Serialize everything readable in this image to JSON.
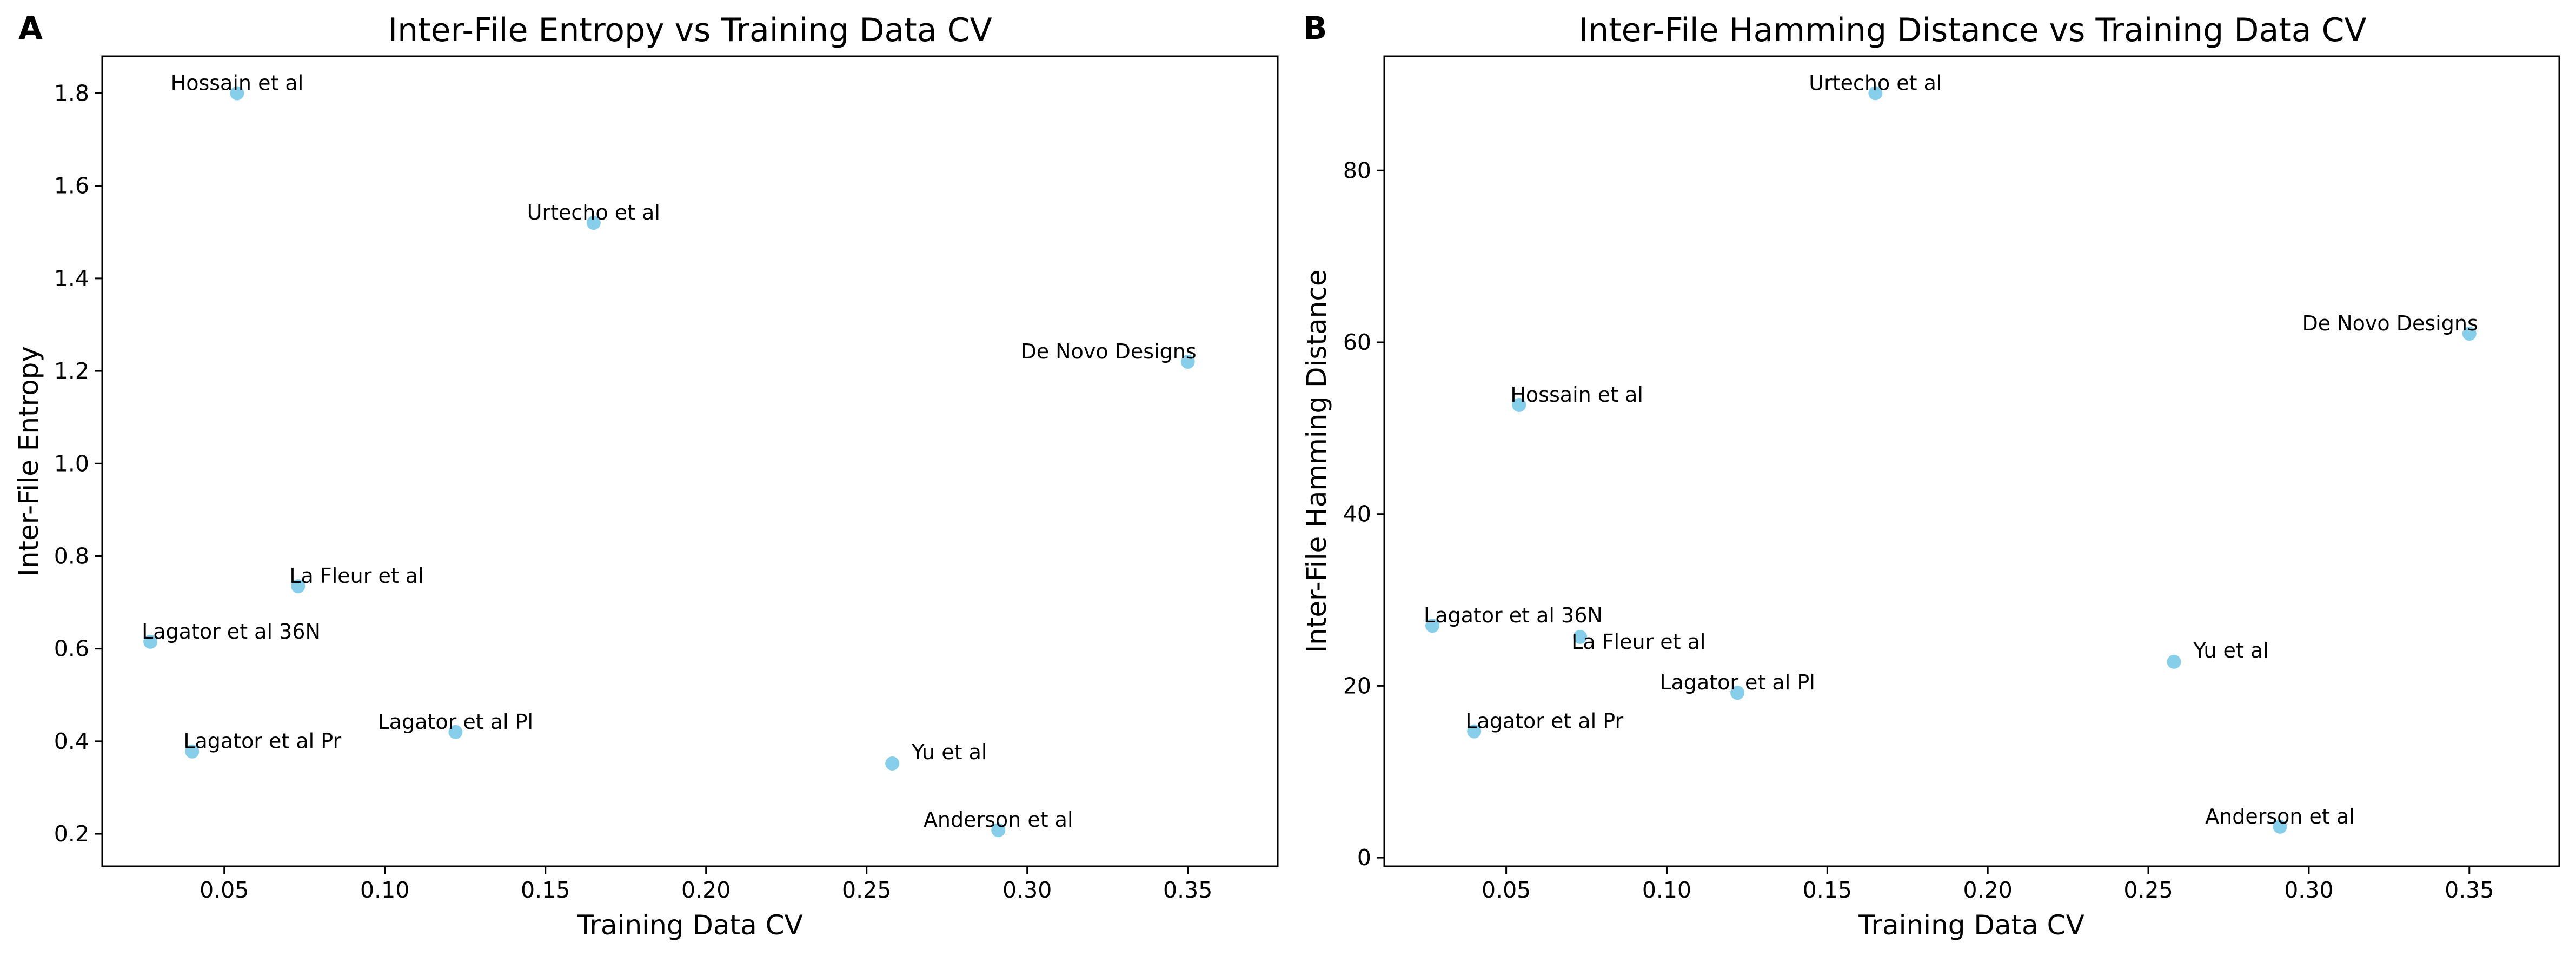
{
  "chart_data": [
    {
      "type": "scatter",
      "panel_label": "A",
      "title": "Inter-File Entropy vs Training Data CV",
      "xlabel": "Training Data CV",
      "ylabel": "Inter-File Entropy",
      "xlim": [
        0.012,
        0.378
      ],
      "ylim": [
        0.13,
        1.88
      ],
      "x_ticks": [
        0.05,
        0.1,
        0.15,
        0.2,
        0.25,
        0.3,
        0.35
      ],
      "x_tick_labels": [
        "0.05",
        "0.10",
        "0.15",
        "0.20",
        "0.25",
        "0.30",
        "0.35"
      ],
      "y_ticks": [
        0.2,
        0.4,
        0.6,
        0.8,
        1.0,
        1.2,
        1.4,
        1.6,
        1.8
      ],
      "y_tick_labels": [
        "0.2",
        "0.4",
        "0.6",
        "0.8",
        "1.0",
        "1.2",
        "1.4",
        "1.6",
        "1.8"
      ],
      "marker_color": "#87CEEB",
      "grid": false,
      "points": [
        {
          "label": "Hossain et al",
          "x": 0.054,
          "y": 1.8,
          "anchor": "middle"
        },
        {
          "label": "Urtecho et al",
          "x": 0.165,
          "y": 1.52,
          "anchor": "middle"
        },
        {
          "label": "De Novo Designs",
          "x": 0.35,
          "y": 1.22,
          "anchor": "end"
        },
        {
          "label": "La Fleur et al",
          "x": 0.073,
          "y": 0.735,
          "anchor": "start"
        },
        {
          "label": "Lagator et al 36N",
          "x": 0.027,
          "y": 0.615,
          "anchor": "start"
        },
        {
          "label": "Lagator et al Pr",
          "x": 0.04,
          "y": 0.378,
          "anchor": "start"
        },
        {
          "label": "Lagator et al Pl",
          "x": 0.122,
          "y": 0.42,
          "anchor": "middle"
        },
        {
          "label": "Yu et al",
          "x": 0.258,
          "y": 0.352,
          "anchor": "start-offset"
        },
        {
          "label": "Anderson et al",
          "x": 0.291,
          "y": 0.208,
          "anchor": "middle"
        }
      ]
    },
    {
      "type": "scatter",
      "panel_label": "B",
      "title": "Inter-File Hamming Distance vs Training Data CV",
      "xlabel": "Training Data CV",
      "ylabel": "Inter-File Hamming Distance",
      "xlim": [
        0.012,
        0.378
      ],
      "ylim": [
        -1.0,
        93.3
      ],
      "x_ticks": [
        0.05,
        0.1,
        0.15,
        0.2,
        0.25,
        0.3,
        0.35
      ],
      "x_tick_labels": [
        "0.05",
        "0.10",
        "0.15",
        "0.20",
        "0.25",
        "0.30",
        "0.35"
      ],
      "y_ticks": [
        0,
        20,
        40,
        60,
        80
      ],
      "y_tick_labels": [
        "0",
        "20",
        "40",
        "60",
        "80"
      ],
      "marker_color": "#87CEEB",
      "grid": false,
      "points": [
        {
          "label": "Urtecho et al",
          "x": 0.165,
          "y": 89.0,
          "anchor": "middle"
        },
        {
          "label": "De Novo Designs",
          "x": 0.35,
          "y": 61.0,
          "anchor": "end"
        },
        {
          "label": "Hossain et al",
          "x": 0.054,
          "y": 52.7,
          "anchor": "start"
        },
        {
          "label": "Lagator et al 36N",
          "x": 0.027,
          "y": 27.0,
          "anchor": "start"
        },
        {
          "label": "La Fleur et al",
          "x": 0.073,
          "y": 25.7,
          "anchor": "start-below"
        },
        {
          "label": "Yu et al",
          "x": 0.258,
          "y": 22.8,
          "anchor": "start-offset"
        },
        {
          "label": "Lagator et al Pl",
          "x": 0.122,
          "y": 19.2,
          "anchor": "middle"
        },
        {
          "label": "Lagator et al Pr",
          "x": 0.04,
          "y": 14.7,
          "anchor": "start"
        },
        {
          "label": "Anderson et al",
          "x": 0.291,
          "y": 3.6,
          "anchor": "middle"
        }
      ]
    }
  ]
}
